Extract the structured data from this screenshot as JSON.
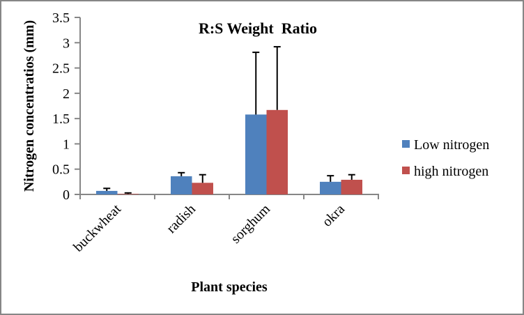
{
  "chart_data": {
    "type": "bar",
    "title": "R:S Weight  Ratio",
    "xlabel": "Plant species",
    "ylabel": "Nitrogen concentratios (mm)",
    "categories": [
      "buckwheat",
      "radish",
      "sorghum",
      "okra"
    ],
    "ylim": [
      0,
      3.5
    ],
    "yticks": [
      "0",
      "0.5",
      "1",
      "1.5",
      "2",
      "2.5",
      "3",
      "3.5"
    ],
    "ytick_values": [
      0,
      0.5,
      1,
      1.5,
      2,
      2.5,
      3,
      3.5
    ],
    "grid": false,
    "legend_position": "right",
    "series": [
      {
        "name": "Low nitrogen",
        "color": "#4f81bd",
        "values": [
          0.07,
          0.36,
          1.58,
          0.25
        ],
        "error_upper": [
          0.12,
          0.43,
          2.81,
          0.37
        ]
      },
      {
        "name": "high nitrogen",
        "color": "#c0504d",
        "values": [
          0.01,
          0.23,
          1.67,
          0.29
        ],
        "error_upper": [
          0.03,
          0.39,
          2.92,
          0.39
        ]
      }
    ]
  }
}
